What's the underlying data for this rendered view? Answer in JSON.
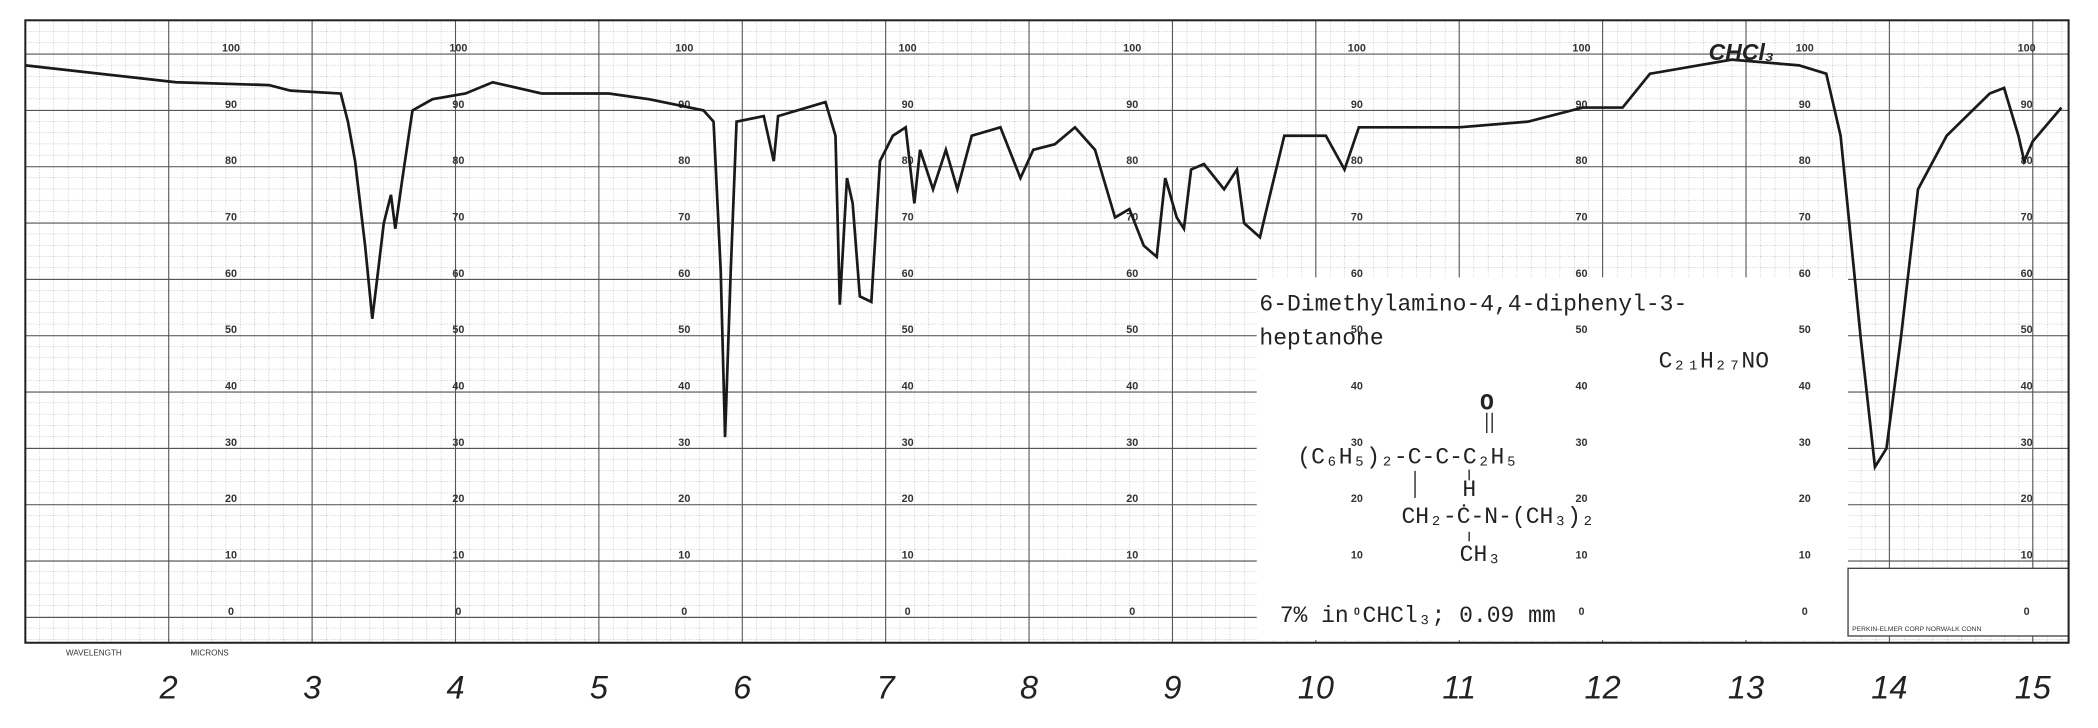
{
  "chart_data": {
    "type": "line",
    "x_label": "MICRONS",
    "x_label_left": "WAVELENGTH",
    "maker": "PERKIN-ELMER CORP NORWALK CONN",
    "annotations": {
      "name_line1": "6-Dimethylamino-4,4-diphenyl-3-",
      "name_line2": "heptanone",
      "formula": "C₂₁H₂₇NO",
      "struct_o": "O",
      "struct_main": "(C₆H₅)₂-C-C-C₂H₅",
      "struct_h": "H",
      "struct_branch": "CH₂-Ċ-N-(CH₃)₂",
      "struct_ch3": "CH₃",
      "conditions": "7% in CHCl₃; 0.09 mm",
      "solvent_note": "CHCl₃"
    },
    "xlim": [
      1,
      15.25
    ],
    "xticks": [
      2,
      3,
      4,
      5,
      6,
      7,
      8,
      9,
      10,
      11,
      12,
      13,
      14,
      15
    ],
    "ylim": [
      -4.5,
      106
    ],
    "yticks": [
      0,
      10,
      20,
      30,
      40,
      50,
      60,
      70,
      80,
      90,
      100
    ],
    "grid": true,
    "color": "#1a1a1a",
    "x": [
      1.0,
      2.05,
      2.7,
      2.85,
      3.2,
      3.25,
      3.3,
      3.37,
      3.42,
      3.46,
      3.5,
      3.55,
      3.58,
      3.63,
      3.7,
      3.84,
      4.07,
      4.26,
      4.6,
      5.07,
      5.35,
      5.73,
      5.8,
      5.85,
      5.88,
      5.92,
      5.96,
      6.15,
      6.22,
      6.25,
      6.58,
      6.65,
      6.68,
      6.73,
      6.77,
      6.82,
      6.9,
      6.96,
      7.05,
      7.14,
      7.2,
      7.24,
      7.33,
      7.42,
      7.5,
      7.6,
      7.8,
      7.94,
      8.03,
      8.18,
      8.32,
      8.46,
      8.6,
      8.7,
      8.8,
      8.89,
      8.95,
      9.03,
      9.08,
      9.13,
      9.22,
      9.36,
      9.45,
      9.5,
      9.61,
      9.69,
      9.78,
      10.07,
      10.2,
      10.3,
      10.63,
      11.0,
      11.48,
      11.86,
      12.14,
      12.33,
      12.9,
      13.37,
      13.56,
      13.66,
      13.8,
      13.9,
      13.98,
      14.08,
      14.2,
      14.4,
      14.7,
      14.8,
      14.9,
      14.94,
      15.0,
      15.2
    ],
    "values": [
      98,
      95,
      94.5,
      93.5,
      93,
      88,
      81,
      66,
      53,
      61.5,
      70,
      75,
      69,
      78,
      90,
      92,
      93,
      95,
      93,
      93,
      92,
      90,
      88,
      61.5,
      32,
      61.5,
      88,
      89,
      81,
      89,
      91.5,
      85.5,
      55.5,
      78,
      73.5,
      57,
      56,
      81,
      85.5,
      87,
      73.5,
      83,
      76,
      83,
      76,
      85.5,
      87,
      78,
      83,
      84,
      87,
      83,
      71,
      72.5,
      66,
      64,
      78,
      71,
      69,
      79.5,
      80.5,
      76,
      79.5,
      70,
      67.5,
      76,
      85.5,
      85.5,
      79.5,
      87,
      87,
      87,
      88,
      90.5,
      90.5,
      96.5,
      99,
      98,
      96.5,
      85.5,
      49.5,
      26.7,
      30,
      49.5,
      76,
      85.5,
      93,
      94,
      85.5,
      81,
      84.5,
      90.5
    ]
  }
}
